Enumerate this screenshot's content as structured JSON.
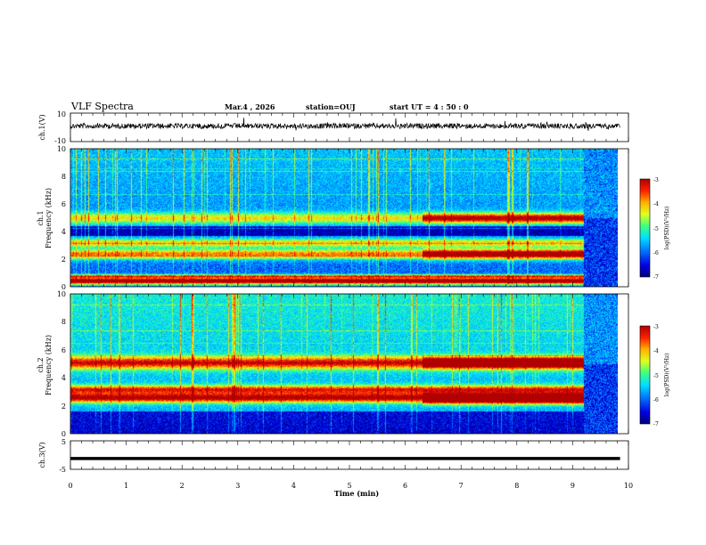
{
  "header": {
    "title": "VLF Spectra",
    "date": "Mar.4 , 2026",
    "station": "station=OUJ",
    "start": "start UT =  4 : 50 : 0"
  },
  "colors": {
    "trace": "#000000",
    "axis": "#000000",
    "colormap": [
      "#00007a",
      "#0000e6",
      "#0080ff",
      "#00e0ff",
      "#40ff80",
      "#e0ff20",
      "#ffb000",
      "#ff2000",
      "#b00000"
    ]
  },
  "chart_data": [
    {
      "type": "line",
      "name": "ch1-waveform",
      "ylabel": "ch.1(V)",
      "ylim": [
        -10,
        10
      ],
      "yticks": [
        "10",
        "-10"
      ],
      "xlim": [
        0,
        10
      ]
    },
    {
      "type": "heatmap",
      "name": "ch1-spectrogram",
      "ylabel": "ch.1\nFrequency (kHz)",
      "ylabel_lines": [
        "ch.1",
        "Frequency (kHz)"
      ],
      "ylim": [
        0,
        10
      ],
      "yticks": [
        "0",
        "2",
        "4",
        "6",
        "8",
        "10"
      ],
      "colorbar": {
        "label": "log(PSD)(V²/Hz)",
        "range": [
          -7,
          -3
        ],
        "ticks": [
          "-3",
          "-4",
          "-5",
          "-6",
          "-7"
        ]
      },
      "bands": [
        {
          "f": 0.45,
          "w": 0.25,
          "v": 0.9
        },
        {
          "f": 0.8,
          "w": 0.12,
          "v": 0.55
        },
        {
          "f": 2.4,
          "w": 0.35,
          "v": 0.55
        },
        {
          "f": 3.2,
          "w": 0.3,
          "v": 0.45
        },
        {
          "f": 5.0,
          "w": 0.4,
          "v": 0.4
        }
      ],
      "quiet_band": {
        "f_min": 3.7,
        "f_max": 4.4
      },
      "event": {
        "t_start": 6.3,
        "t_end": 9.2,
        "bands": [
          2.4,
          5.0
        ],
        "v": 0.6
      },
      "dropout": {
        "t_start": 9.2,
        "t_end": 9.85
      }
    },
    {
      "type": "heatmap",
      "name": "ch2-spectrogram",
      "ylabel": "ch.2\nFrequency (kHz)",
      "ylabel_lines": [
        "ch.2",
        "Frequency (kHz)"
      ],
      "ylim": [
        0,
        10
      ],
      "yticks": [
        "0",
        "2",
        "4",
        "6",
        "8",
        "10"
      ],
      "colorbar": {
        "label": "log(PSD)(V²/Hz)",
        "range": [
          -7,
          -3
        ],
        "ticks": [
          "-3",
          "-4",
          "-5",
          "-6",
          "-7"
        ]
      },
      "bands": [
        {
          "f": 2.6,
          "w": 0.35,
          "v": 0.7
        },
        {
          "f": 3.2,
          "w": 0.3,
          "v": 0.55
        },
        {
          "f": 5.1,
          "w": 0.45,
          "v": 0.6
        }
      ],
      "quiet_band": {
        "f_min": 0.0,
        "f_max": 1.6
      },
      "event": {
        "t_start": 6.3,
        "t_end": 9.2,
        "bands": [
          2.5,
          5.1
        ],
        "v": 0.85
      },
      "dropout": {
        "t_start": 9.2,
        "t_end": 9.85
      }
    },
    {
      "type": "line",
      "name": "ch3-waveform",
      "ylabel": "ch.3(V)",
      "ylim": [
        -5,
        5
      ],
      "yticks": [
        "5",
        "-5"
      ],
      "level": -1.2,
      "xlim": [
        0,
        10
      ]
    }
  ],
  "xaxis": {
    "label": "Time (min)",
    "ticks": [
      "0",
      "1",
      "2",
      "3",
      "4",
      "5",
      "6",
      "7",
      "8",
      "9",
      "10"
    ],
    "range": [
      0,
      10
    ],
    "data_end": 9.85
  }
}
